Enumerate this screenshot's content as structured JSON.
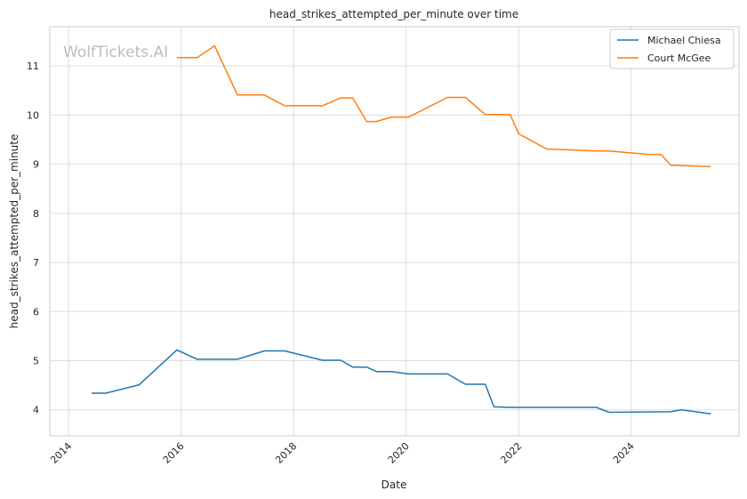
{
  "chart_data": {
    "type": "line",
    "title": "head_strikes_attempted_per_minute over time",
    "xlabel": "Date",
    "ylabel": "head_strikes_attempted_per_minute",
    "watermark": "WolfTickets.AI",
    "x_ticks": [
      "2014",
      "2016",
      "2018",
      "2020",
      "2022",
      "2024"
    ],
    "y_ticks": [
      "4",
      "5",
      "6",
      "7",
      "8",
      "9",
      "10",
      "11"
    ],
    "xlim": [
      "2013-09-01",
      "2025-12-01"
    ],
    "ylim": [
      3.47,
      11.8
    ],
    "grid": true,
    "legend_position": "top-right",
    "series": [
      {
        "name": "Michael Chiesa",
        "color": "#1f77b4",
        "points": [
          [
            "2014-05-31",
            4.34
          ],
          [
            "2014-08-30",
            4.34
          ],
          [
            "2015-04-04",
            4.51
          ],
          [
            "2015-12-05",
            5.22
          ],
          [
            "2016-04-15",
            5.03
          ],
          [
            "2017-01-01",
            5.03
          ],
          [
            "2017-06-25",
            5.2
          ],
          [
            "2017-11-04",
            5.2
          ],
          [
            "2018-07-07",
            5.01
          ],
          [
            "2018-11-03",
            5.01
          ],
          [
            "2019-01-19",
            4.87
          ],
          [
            "2019-04-20",
            4.87
          ],
          [
            "2019-06-22",
            4.78
          ],
          [
            "2019-09-28",
            4.78
          ],
          [
            "2020-01-18",
            4.73
          ],
          [
            "2020-09-26",
            4.73
          ],
          [
            "2021-01-20",
            4.52
          ],
          [
            "2021-05-29",
            4.52
          ],
          [
            "2021-07-24",
            4.06
          ],
          [
            "2021-11-06",
            4.05
          ],
          [
            "2023-05-20",
            4.05
          ],
          [
            "2023-08-12",
            3.95
          ],
          [
            "2024-09-14",
            3.96
          ],
          [
            "2024-11-23",
            4.0
          ],
          [
            "2025-06-01",
            3.92
          ]
        ]
      },
      {
        "name": "Court McGee",
        "color": "#ff7f0e",
        "points": [
          [
            "2015-12-05",
            11.17
          ],
          [
            "2016-04-15",
            11.17
          ],
          [
            "2016-08-06",
            11.41
          ],
          [
            "2017-01-01",
            10.41
          ],
          [
            "2017-06-25",
            10.41
          ],
          [
            "2017-11-04",
            10.19
          ],
          [
            "2018-07-07",
            10.19
          ],
          [
            "2018-11-03",
            10.35
          ],
          [
            "2019-01-19",
            10.35
          ],
          [
            "2019-04-20",
            9.87
          ],
          [
            "2019-06-22",
            9.87
          ],
          [
            "2019-09-28",
            9.96
          ],
          [
            "2020-01-18",
            9.96
          ],
          [
            "2020-09-26",
            10.36
          ],
          [
            "2021-01-20",
            10.36
          ],
          [
            "2021-05-29",
            10.01
          ],
          [
            "2021-11-06",
            10.01
          ],
          [
            "2022-01-01",
            9.62
          ],
          [
            "2022-07-01",
            9.31
          ],
          [
            "2023-05-20",
            9.27
          ],
          [
            "2023-08-12",
            9.27
          ],
          [
            "2024-04-20",
            9.2
          ],
          [
            "2024-07-13",
            9.2
          ],
          [
            "2024-09-14",
            8.98
          ],
          [
            "2025-06-01",
            8.95
          ]
        ]
      }
    ]
  }
}
